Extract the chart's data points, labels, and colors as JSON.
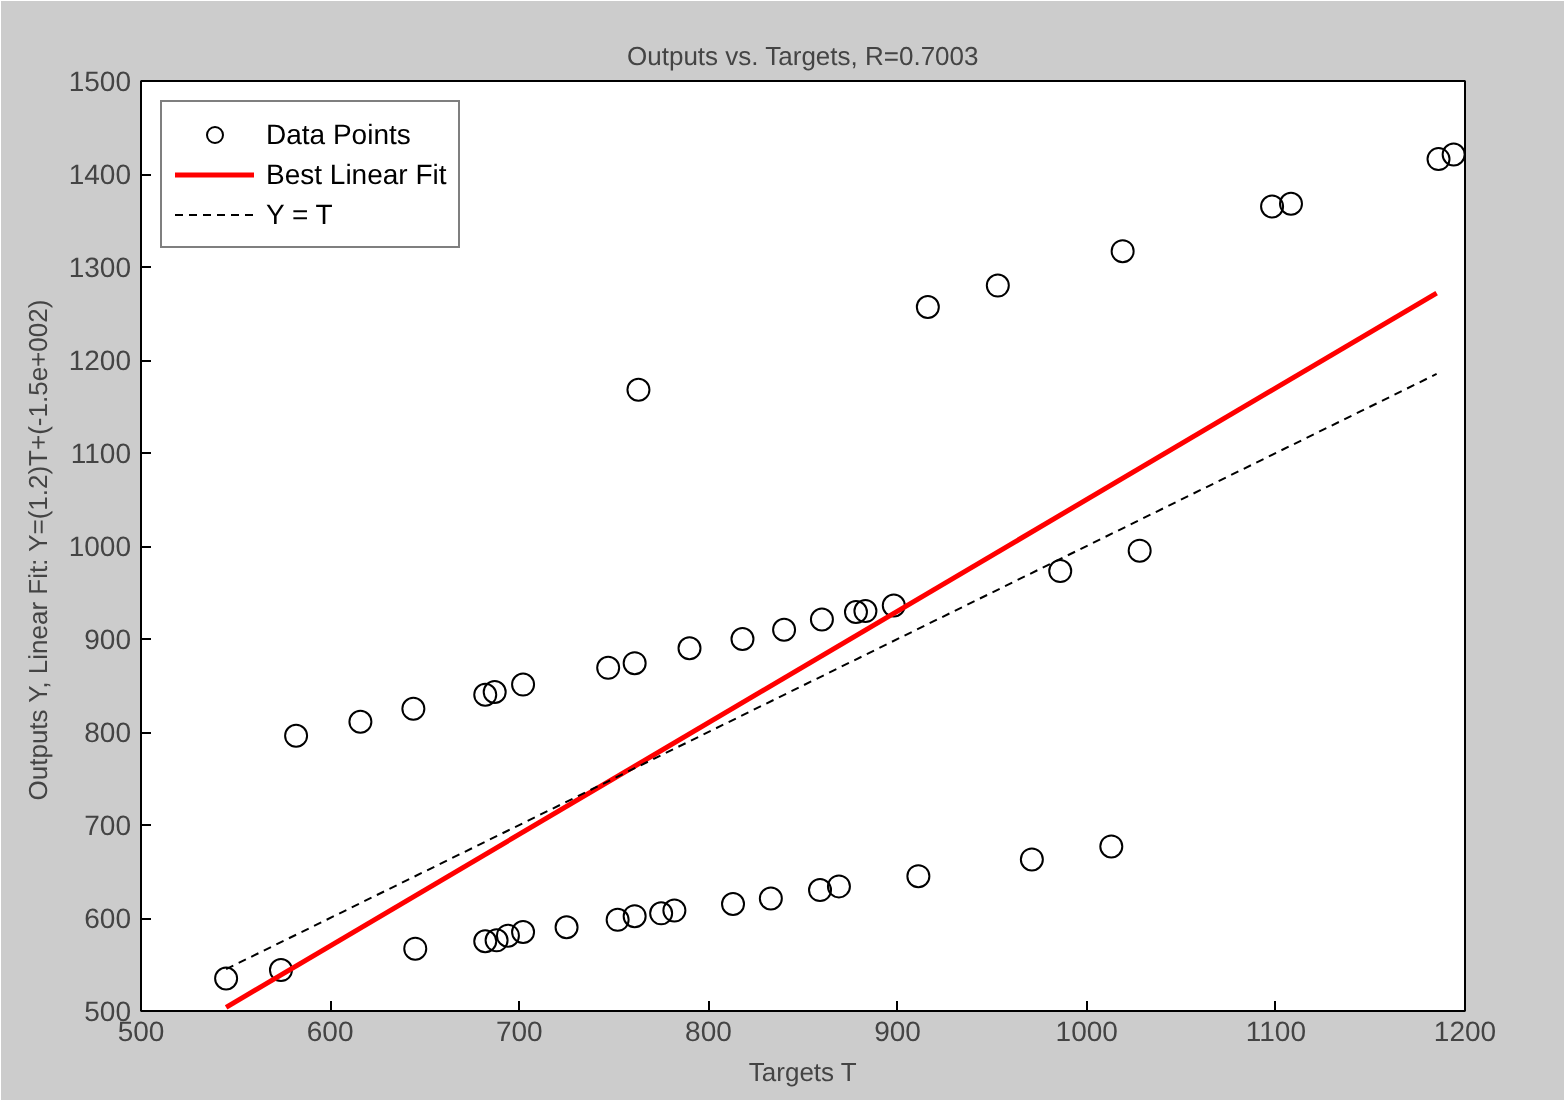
{
  "chart_data": {
    "type": "scatter",
    "title": "Outputs vs. Targets, R=0.7003",
    "xlabel": "Targets T",
    "ylabel": "Outputs Y,  Linear Fit: Y=(1.2)T+(-1.5e+002)",
    "xlim": [
      500,
      1200
    ],
    "ylim": [
      500,
      1500
    ],
    "xticks": [
      500,
      600,
      700,
      800,
      900,
      1000,
      1100,
      1200
    ],
    "yticks": [
      500,
      600,
      700,
      800,
      900,
      1000,
      1100,
      1200,
      1300,
      1400,
      1500
    ],
    "grid": false,
    "legend": "top left",
    "series": [
      {
        "name": "Data Points",
        "color": "#000000",
        "marker": "circle",
        "x": [
          545,
          574,
          645,
          682,
          688,
          694,
          702,
          725,
          752,
          761,
          775,
          782,
          813,
          833,
          859,
          869,
          911,
          971,
          1013,
          582,
          616,
          644,
          682,
          687,
          702,
          747,
          761,
          790,
          818,
          840,
          860,
          878,
          883,
          898,
          986,
          1028,
          763,
          916,
          953,
          1019,
          1098,
          1108,
          1186,
          1194
        ],
        "values": [
          535,
          544,
          567,
          575,
          576,
          581,
          585,
          590,
          598,
          602,
          605,
          608,
          615,
          621,
          630,
          634,
          645,
          663,
          677,
          796,
          811,
          825,
          840,
          843,
          851,
          869,
          874,
          890,
          900,
          910,
          921,
          929,
          930,
          936,
          973,
          995,
          1168,
          1257,
          1280,
          1317,
          1365,
          1368,
          1416,
          1421
        ]
      },
      {
        "name": "Best Linear Fit",
        "type": "line",
        "color": "#ff0000",
        "line_style": "solid",
        "x": [
          545,
          1185
        ],
        "values": [
          504,
          1272
        ]
      },
      {
        "name": "Y = T",
        "type": "line",
        "color": "#000000",
        "line_style": "dashed",
        "x": [
          545,
          1185
        ],
        "values": [
          545,
          1185
        ]
      }
    ]
  }
}
